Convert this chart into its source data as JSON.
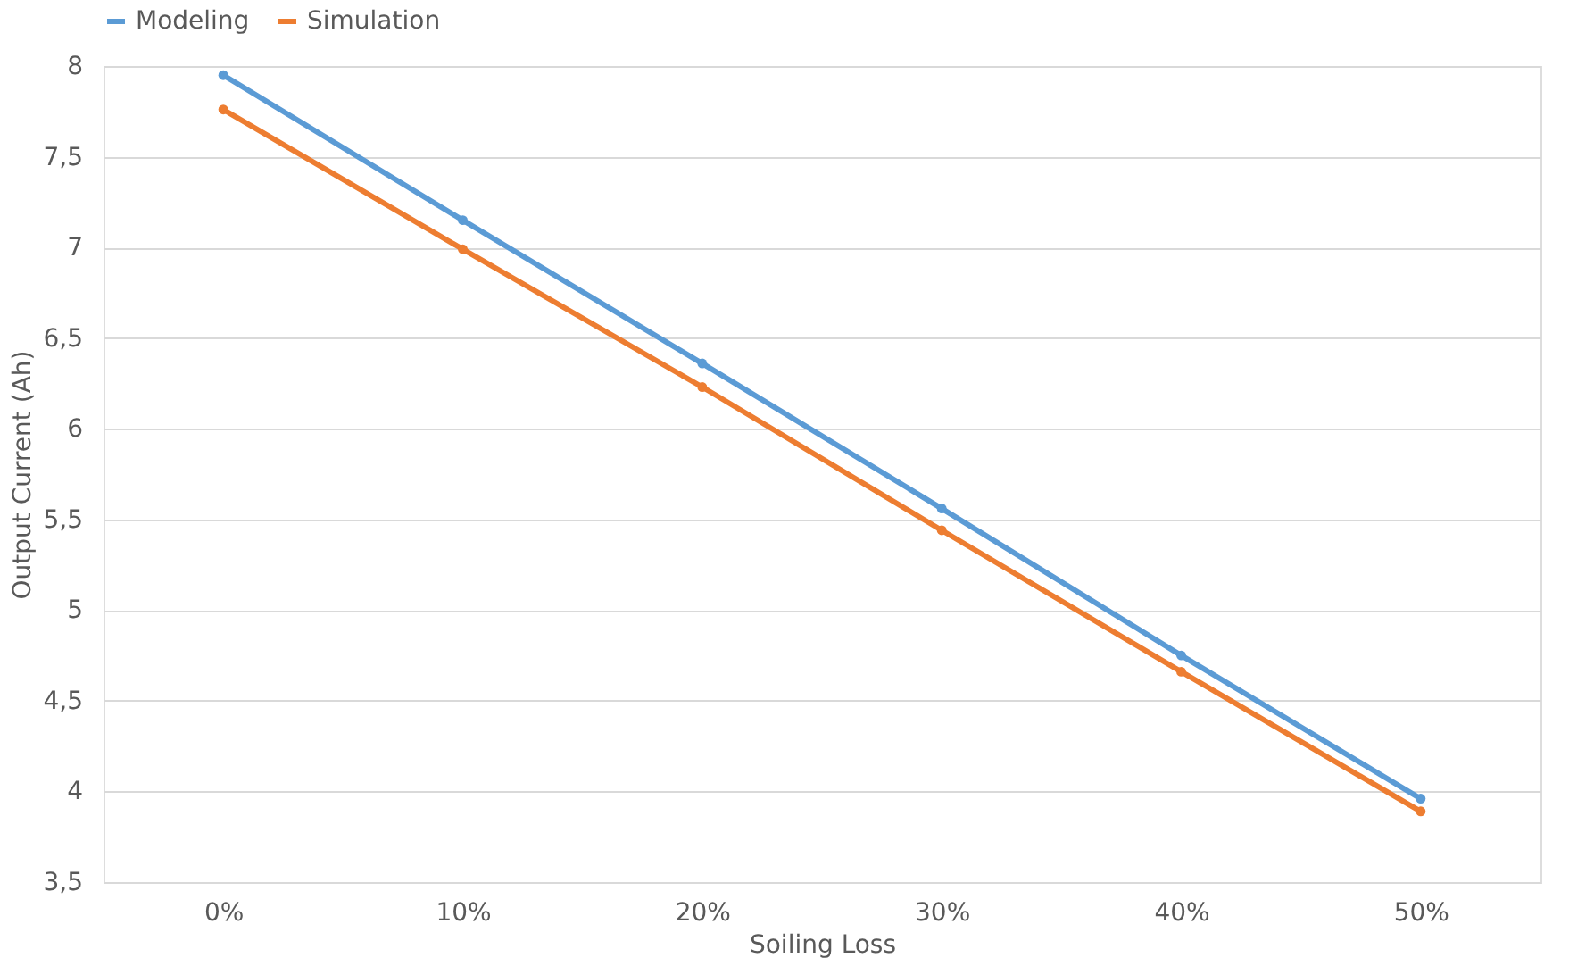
{
  "chart_data": {
    "type": "line",
    "xlabel": "Soiling Loss",
    "ylabel": "Output Current (Ah)",
    "categories": [
      "0%",
      "10%",
      "20%",
      "30%",
      "40%",
      "50%"
    ],
    "series": [
      {
        "name": "Modeling",
        "color": "#5b9bd5",
        "values": [
          7.95,
          7.15,
          6.36,
          5.56,
          4.75,
          3.96
        ]
      },
      {
        "name": "Simulation",
        "color": "#ed7d31",
        "values": [
          7.76,
          6.99,
          6.23,
          5.44,
          4.66,
          3.89
        ]
      }
    ],
    "ylim": [
      3.5,
      8
    ],
    "yticks": [
      {
        "value": 3.5,
        "label": "3,5"
      },
      4,
      {
        "value": 4.5,
        "label": "4,5"
      },
      5,
      {
        "value": 5.5,
        "label": "5,5"
      },
      6,
      {
        "value": 6.5,
        "label": "6,5"
      },
      7,
      {
        "value": 7.5,
        "label": "7,5"
      },
      8
    ],
    "grid": "y",
    "legend": "top",
    "marker": "circle",
    "line_style": "solid"
  }
}
